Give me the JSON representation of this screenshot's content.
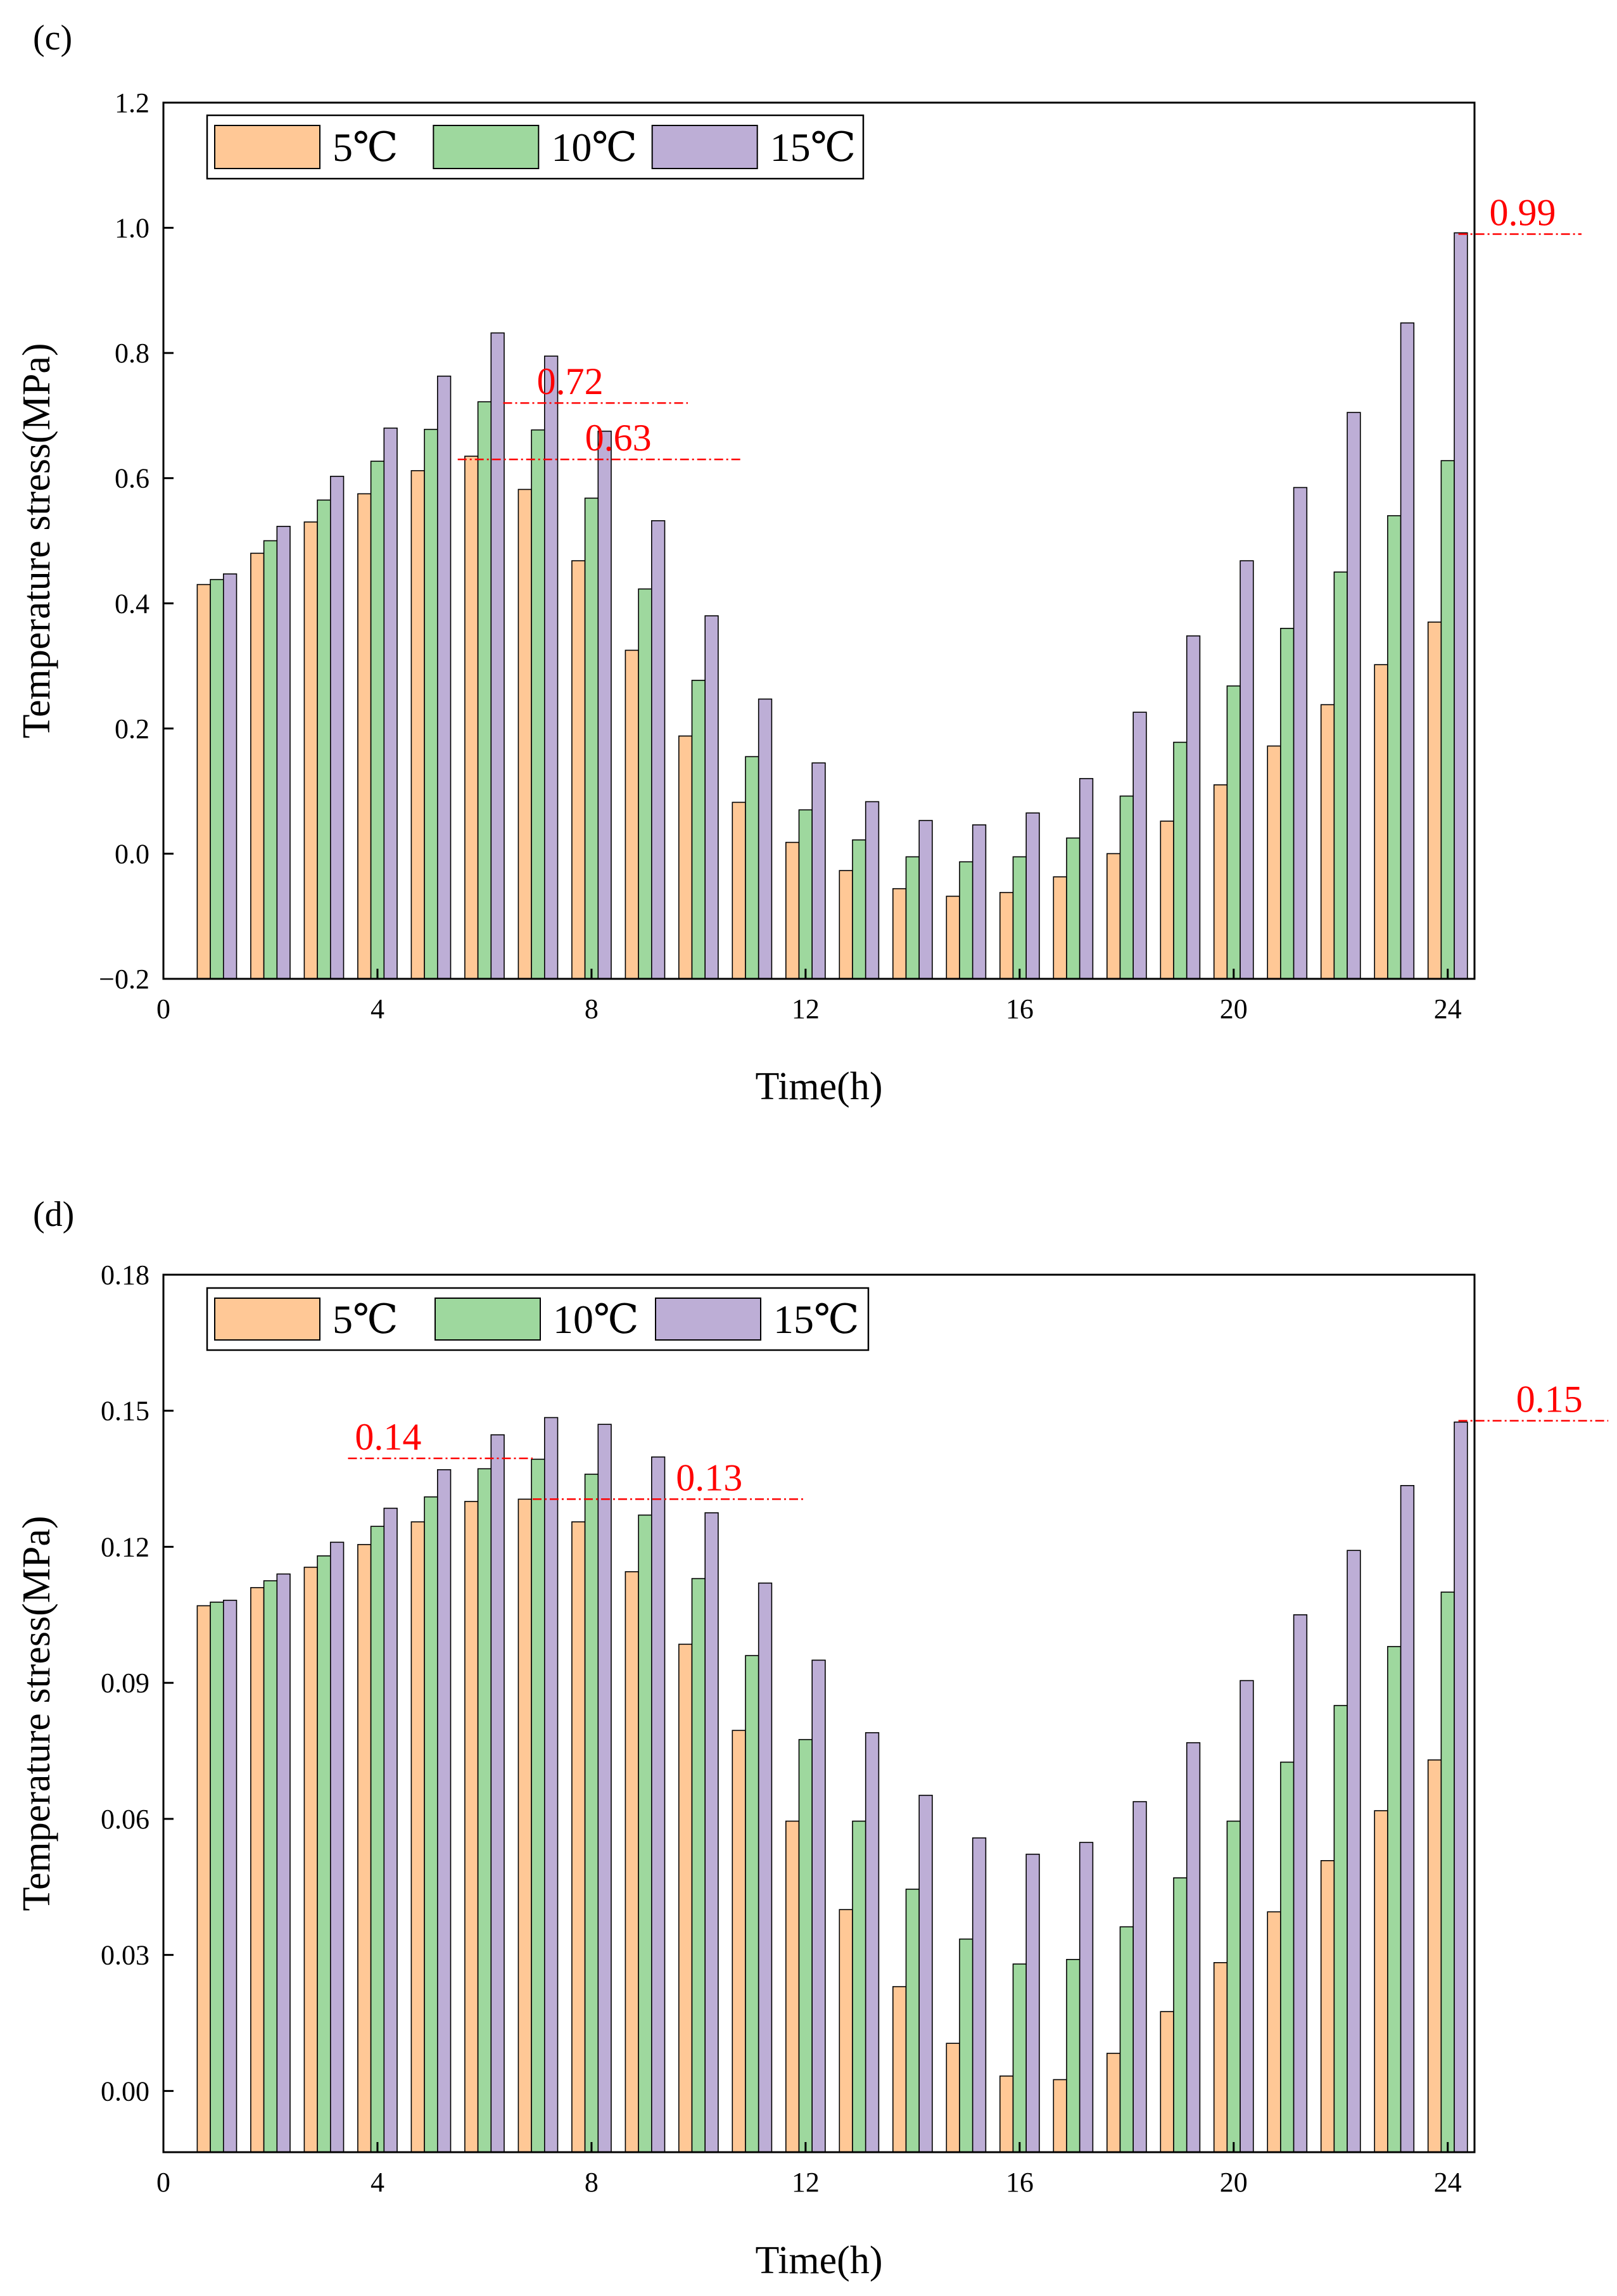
{
  "colors": {
    "s5": "#FFC896",
    "s10": "#9ED89E",
    "s15": "#BDAED6",
    "annotation": "#FF0000",
    "axis": "#000000"
  },
  "chart_data": [
    {
      "type": "bar",
      "panel_label": "(c)",
      "xlabel": "Time(h)",
      "ylabel": "Temperature stress(MPa)",
      "xlim": [
        0,
        24.5
      ],
      "ylim": [
        -0.2,
        1.2
      ],
      "xticks": [
        0,
        4,
        8,
        12,
        16,
        20,
        24
      ],
      "yticks": [
        -0.2,
        0.0,
        0.2,
        0.4,
        0.6,
        0.8,
        1.0,
        1.2
      ],
      "ytick_labels": [
        "−0.2",
        "0.0",
        "0.2",
        "0.4",
        "0.6",
        "0.8",
        "1.0",
        "1.2"
      ],
      "legend": {
        "position": "top-left",
        "entries": [
          "5℃",
          "10℃",
          "15℃"
        ]
      },
      "x": [
        1,
        2,
        3,
        4,
        5,
        6,
        7,
        8,
        9,
        10,
        11,
        12,
        13,
        14,
        15,
        16,
        17,
        18,
        19,
        20,
        21,
        22,
        23,
        24
      ],
      "series": [
        {
          "name": "5℃",
          "values": [
            0.43,
            0.48,
            0.53,
            0.575,
            0.612,
            0.635,
            0.582,
            0.468,
            0.325,
            0.188,
            0.082,
            0.018,
            -0.027,
            -0.056,
            -0.068,
            -0.062,
            -0.037,
            0.0,
            0.052,
            0.11,
            0.172,
            0.238,
            0.302,
            0.37
          ]
        },
        {
          "name": "10℃",
          "values": [
            0.438,
            0.5,
            0.565,
            0.627,
            0.678,
            0.722,
            0.677,
            0.568,
            0.423,
            0.277,
            0.155,
            0.07,
            0.022,
            -0.005,
            -0.013,
            -0.005,
            0.025,
            0.092,
            0.178,
            0.268,
            0.36,
            0.45,
            0.54,
            0.628
          ]
        },
        {
          "name": "15℃",
          "values": [
            0.447,
            0.523,
            0.603,
            0.68,
            0.763,
            0.832,
            0.795,
            0.675,
            0.532,
            0.38,
            0.247,
            0.145,
            0.083,
            0.053,
            0.046,
            0.065,
            0.12,
            0.226,
            0.348,
            0.468,
            0.585,
            0.705,
            0.848,
            0.992
          ]
        }
      ],
      "annotations": [
        {
          "text": "0.72",
          "value": 0.72,
          "x_from": 6.35,
          "x_to": 9.8,
          "text_x": 7.6
        },
        {
          "text": "0.63",
          "value": 0.63,
          "x_from": 5.5,
          "x_to": 10.8,
          "text_x": 8.5
        },
        {
          "text": "0.99",
          "value": 0.99,
          "x_from": 24.2,
          "x_to": 26.5,
          "text_x": 25.4
        }
      ]
    },
    {
      "type": "bar",
      "panel_label": "(d)",
      "xlabel": "Time(h)",
      "ylabel": "Temperature stress(MPa)",
      "xlim": [
        0,
        24.5
      ],
      "ylim": [
        -0.0135,
        0.18
      ],
      "xticks": [
        0,
        4,
        8,
        12,
        16,
        20,
        24
      ],
      "yticks": [
        0.0,
        0.03,
        0.06,
        0.09,
        0.12,
        0.15,
        0.18
      ],
      "ytick_labels": [
        "0.00",
        "0.03",
        "0.06",
        "0.09",
        "0.12",
        "0.15",
        "0.18"
      ],
      "legend": {
        "position": "top-left",
        "entries": [
          "5℃",
          "10℃",
          "15℃"
        ]
      },
      "x": [
        1,
        2,
        3,
        4,
        5,
        6,
        7,
        8,
        9,
        10,
        11,
        12,
        13,
        14,
        15,
        16,
        17,
        18,
        19,
        20,
        21,
        22,
        23,
        24
      ],
      "series": [
        {
          "name": "5℃",
          "values": [
            0.107,
            0.111,
            0.1155,
            0.1205,
            0.1255,
            0.13,
            0.1305,
            0.1255,
            0.1145,
            0.0985,
            0.0795,
            0.0595,
            0.04,
            0.023,
            0.0105,
            0.0033,
            0.0025,
            0.0083,
            0.0175,
            0.0283,
            0.0395,
            0.0508,
            0.0618,
            0.073
          ]
        },
        {
          "name": "10℃",
          "values": [
            0.1078,
            0.1125,
            0.118,
            0.1245,
            0.131,
            0.1372,
            0.1393,
            0.136,
            0.127,
            0.113,
            0.096,
            0.0775,
            0.0595,
            0.0445,
            0.0335,
            0.028,
            0.029,
            0.0362,
            0.047,
            0.0595,
            0.0725,
            0.085,
            0.098,
            0.11
          ]
        },
        {
          "name": "15℃",
          "values": [
            0.1082,
            0.114,
            0.121,
            0.1285,
            0.137,
            0.1447,
            0.1485,
            0.147,
            0.1398,
            0.1275,
            0.112,
            0.095,
            0.079,
            0.0652,
            0.0558,
            0.0522,
            0.0548,
            0.0638,
            0.0768,
            0.0905,
            0.105,
            0.1192,
            0.1335,
            0.1475
          ]
        }
      ],
      "annotations": [
        {
          "text": "0.14",
          "value": 0.1395,
          "x_from": 3.45,
          "x_to": 6.9,
          "text_x": 4.2
        },
        {
          "text": "0.13",
          "value": 0.1305,
          "x_from": 6.9,
          "x_to": 12.0,
          "text_x": 10.2
        },
        {
          "text": "0.15",
          "value": 0.1478,
          "x_from": 24.2,
          "x_to": 27.0,
          "text_x": 25.9
        }
      ]
    }
  ]
}
